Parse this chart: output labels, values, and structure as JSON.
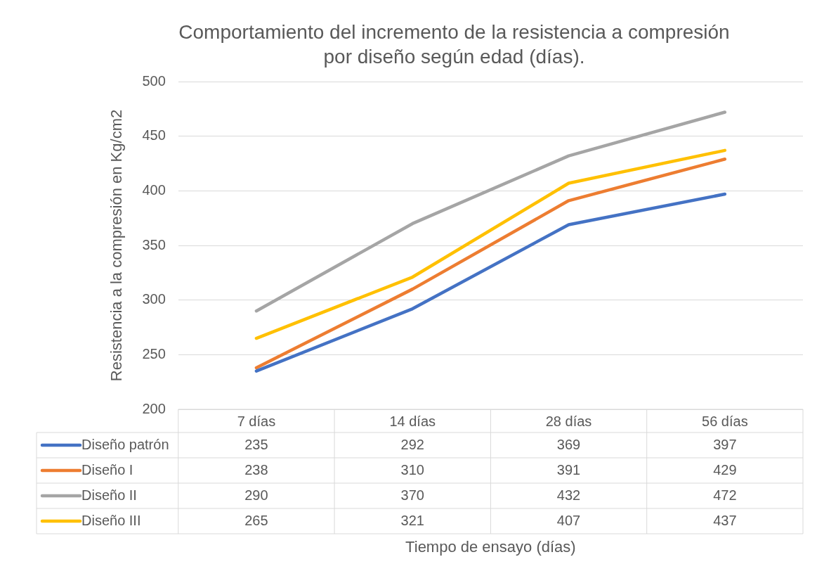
{
  "chart_data": {
    "type": "line",
    "title": "Comportamiento del incremento de la resistencia a compresión por diseño según edad (días).",
    "annotations": [
      "Tiempo de ensayo (días)"
    ],
    "ylabel": "Resistencia a la compresión en Kg/cm2",
    "categories": [
      "7 días",
      "14 días",
      "28 días",
      "56 días"
    ],
    "series": [
      {
        "name": "Diseño patrón",
        "color": "#4472c4",
        "values": [
          235,
          292,
          369,
          397
        ]
      },
      {
        "name": "Diseño I",
        "color": "#ed7d31",
        "values": [
          238,
          310,
          391,
          429
        ]
      },
      {
        "name": "Diseño II",
        "color": "#a5a5a5",
        "values": [
          290,
          370,
          432,
          472
        ]
      },
      {
        "name": "Diseño III",
        "color": "#ffc000",
        "values": [
          265,
          321,
          407,
          437
        ]
      }
    ],
    "ylim": [
      200,
      500
    ],
    "yticks": [
      200,
      250,
      300,
      350,
      400,
      450,
      500
    ],
    "grid": "y",
    "legend": "bottom",
    "data_labels": true,
    "marker": "none",
    "line_style": "solid"
  }
}
